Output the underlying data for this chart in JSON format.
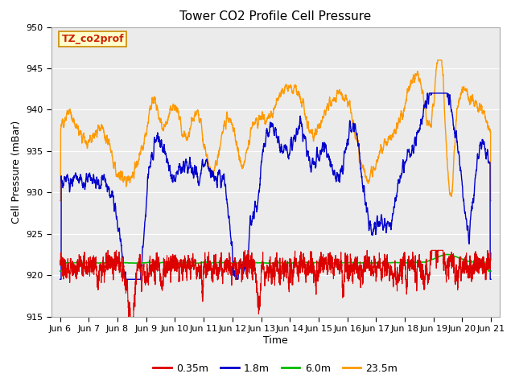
{
  "title": "Tower CO2 Profile Cell Pressure",
  "xlabel": "Time",
  "ylabel": "Cell Pressure (mBar)",
  "ylim": [
    915,
    950
  ],
  "xlim_days": [
    5.7,
    21.3
  ],
  "yticks": [
    915,
    920,
    925,
    930,
    935,
    940,
    945,
    950
  ],
  "xtick_labels": [
    "Jun 6",
    "Jun 7",
    "Jun 8",
    "Jun 9",
    "Jun 10",
    "Jun 11",
    "Jun 12",
    "Jun 13",
    "Jun 14",
    "Jun 15",
    "Jun 16",
    "Jun 17",
    "Jun 18",
    "Jun 19",
    "Jun 20",
    "Jun 21"
  ],
  "xtick_positions": [
    6,
    7,
    8,
    9,
    10,
    11,
    12,
    13,
    14,
    15,
    16,
    17,
    18,
    19,
    20,
    21
  ],
  "series_colors": [
    "#dd0000",
    "#0000cc",
    "#00bb00",
    "#ff9900"
  ],
  "series_labels": [
    "0.35m",
    "1.8m",
    "6.0m",
    "23.5m"
  ],
  "series_linewidths": [
    0.8,
    1.0,
    1.2,
    1.0
  ],
  "annotation_text": "TZ_co2prof",
  "annotation_box_color": "#ffffcc",
  "annotation_border_color": "#cc8800",
  "plot_bg_color": "#ebebeb",
  "grid_color": "#ffffff",
  "title_fontsize": 11,
  "axis_label_fontsize": 9,
  "tick_fontsize": 8,
  "legend_fontsize": 9
}
